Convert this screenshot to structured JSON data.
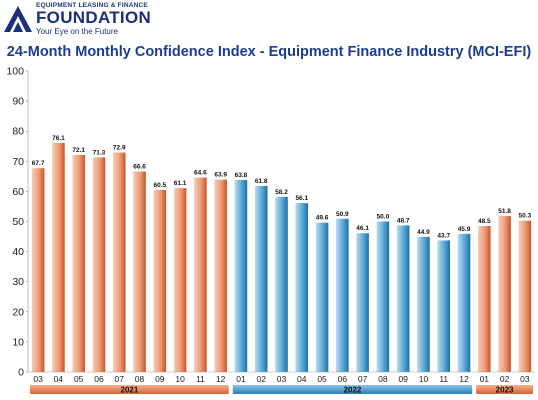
{
  "logo": {
    "line1": "EQUIPMENT LEASING & FINANCE",
    "brand": "FOUNDATION",
    "tagline": "Your Eye on the Future"
  },
  "colors": {
    "orange_light": "#f6c2a6",
    "orange_dark": "#d9653a",
    "blue_light": "#a9d3ec",
    "blue_dark": "#2a7fb5",
    "title": "#1b3d8f"
  },
  "chart_data": {
    "type": "bar",
    "title": "24-Month Monthly Confidence Index - Equipment Finance Industry (MCI-EFI)",
    "xlabel": "",
    "ylabel": "",
    "ylim": [
      0,
      100
    ],
    "yticks": [
      0,
      10,
      20,
      30,
      40,
      50,
      60,
      70,
      80,
      90,
      100
    ],
    "grid": false,
    "categories": [
      "03",
      "04",
      "05",
      "06",
      "07",
      "08",
      "09",
      "10",
      "11",
      "12",
      "01",
      "02",
      "03",
      "04",
      "05",
      "06",
      "07",
      "08",
      "09",
      "10",
      "11",
      "12",
      "01",
      "02",
      "03"
    ],
    "values": [
      67.7,
      76.1,
      72.1,
      71.3,
      72.9,
      66.6,
      60.5,
      61.1,
      64.6,
      63.9,
      63.8,
      61.8,
      58.2,
      56.1,
      49.6,
      50.9,
      46.1,
      50.0,
      48.7,
      44.9,
      43.7,
      45.9,
      48.5,
      51.8,
      50.3
    ],
    "value_labels": [
      "67.7",
      "76.1",
      "72.1",
      "71.3",
      "72.9",
      "66.6",
      "60.5",
      "61.1",
      "64.6",
      "63.9",
      "63.8",
      "61.8",
      "58.2",
      "56.1",
      "49.6",
      "50.9",
      "46.1",
      "50.0",
      "48.7",
      "44.9",
      "43.7",
      "45.9",
      "48.5",
      "51.8",
      "50.3"
    ],
    "groups": [
      {
        "label": "2021",
        "count": 10,
        "color": "orange"
      },
      {
        "label": "2022",
        "count": 12,
        "color": "blue"
      },
      {
        "label": "2023",
        "count": 3,
        "color": "orange"
      }
    ]
  }
}
